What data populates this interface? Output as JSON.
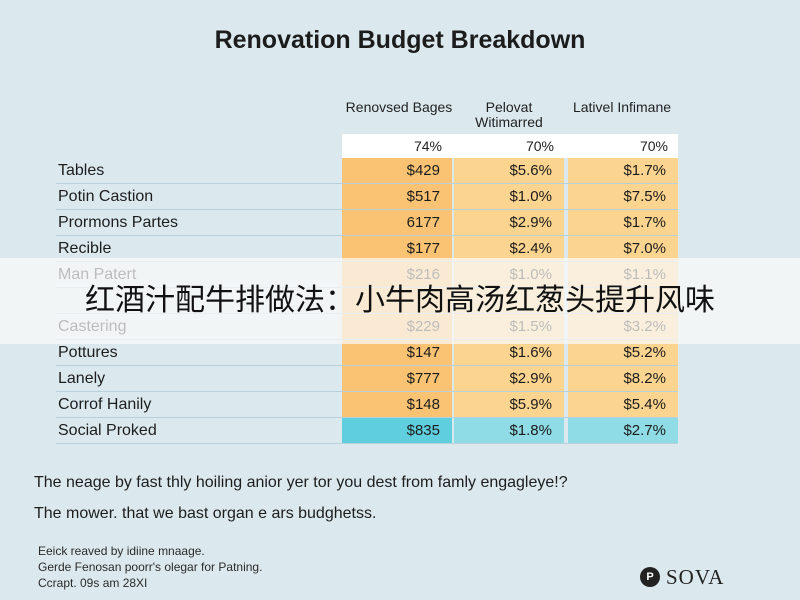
{
  "chart_data": {
    "type": "table",
    "title": "Renovation Budget Breakdown",
    "columns": [
      {
        "header": "Renovsed Bages",
        "percent": "74%"
      },
      {
        "header": "Pelovat Witimarred",
        "percent": "70%"
      },
      {
        "header": "Lativel Infimane",
        "percent": "70%"
      }
    ],
    "rows": [
      {
        "label": "Tables",
        "values": [
          "$429",
          "$5.6%",
          "$1.7%"
        ]
      },
      {
        "label": "Potin Castion",
        "values": [
          "$517",
          "$1.0%",
          "$7.5%"
        ]
      },
      {
        "label": "Prormons Partes",
        "values": [
          "6177",
          "$2.9%",
          "$1.7%"
        ]
      },
      {
        "label": "Recible",
        "values": [
          "$177",
          "$2.4%",
          "$7.0%"
        ]
      },
      {
        "label": "Man Patert",
        "values": [
          "$216",
          "$1.0%",
          "$1.1%"
        ]
      },
      {
        "label": "",
        "values": [
          "",
          "",
          ""
        ]
      },
      {
        "label": "Castering",
        "values": [
          "$229",
          "$1.5%",
          "$3.2%"
        ]
      },
      {
        "label": "Pottures",
        "values": [
          "$147",
          "$1.6%",
          "$5.2%"
        ]
      },
      {
        "label": "Lanely",
        "values": [
          "$777",
          "$2.9%",
          "$8.2%"
        ]
      },
      {
        "label": "Corrof Hanily",
        "values": [
          "$148",
          "$5.9%",
          "$5.4%"
        ]
      },
      {
        "label": "Social Proked",
        "values": [
          "$835",
          "$1.8%",
          "$2.7%"
        ]
      }
    ],
    "colors": {
      "orange": "#f9c373",
      "light_orange": "#fbd48f",
      "cyan": "#5fcfdf",
      "light_cyan": "#8fdbe6"
    }
  },
  "captions": [
    "The neage by fast thly hoiling anior yer tor you dest from famly engagleye!?",
    "The mower. that we bast organ e ars budghetss."
  ],
  "footnotes": [
    "Eeick reaved by idiine mnaage.",
    "Gerde Fenosan poorr's olegar for Patning.",
    "Ccrapt. 09s am 28XI"
  ],
  "logo": {
    "mark": "P",
    "text": "SOVA"
  },
  "overlay_text": "红酒汁配牛排做法：小牛肉高汤红葱头提升风味"
}
